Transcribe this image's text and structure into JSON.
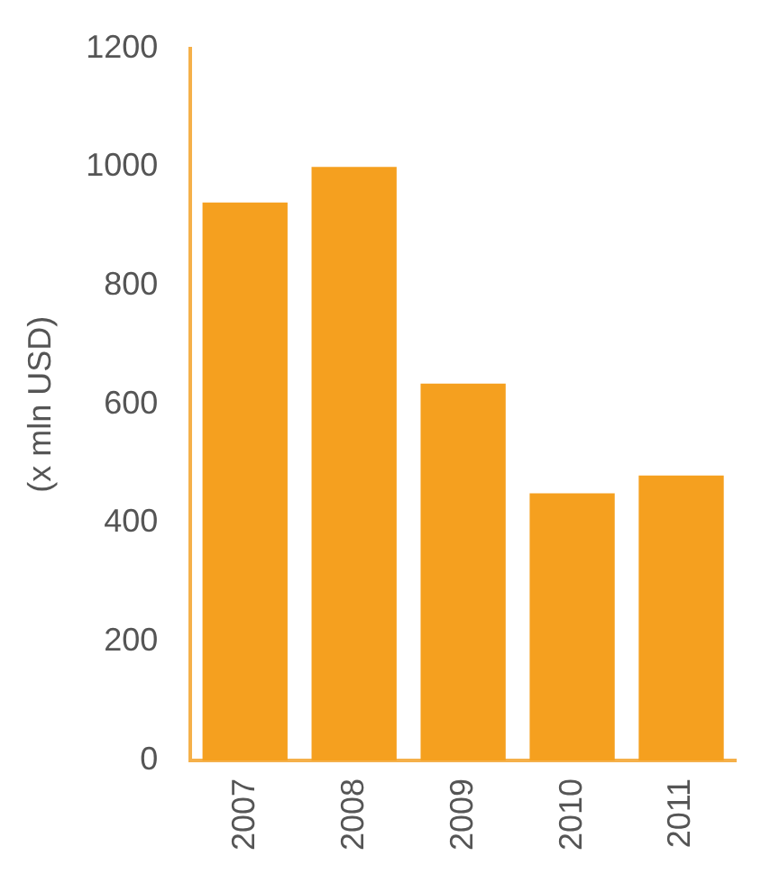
{
  "chart_data": {
    "type": "bar",
    "ylabel": "(x mln USD)",
    "categories": [
      "2007",
      "2008",
      "2009",
      "2010",
      "2011"
    ],
    "values": [
      940,
      1000,
      635,
      450,
      480
    ],
    "color": "#f5a01f",
    "ylim": [
      0,
      1200
    ],
    "yticks": [
      0,
      200,
      400,
      600,
      800,
      1000,
      1200
    ],
    "grid": false,
    "legend": false
  }
}
